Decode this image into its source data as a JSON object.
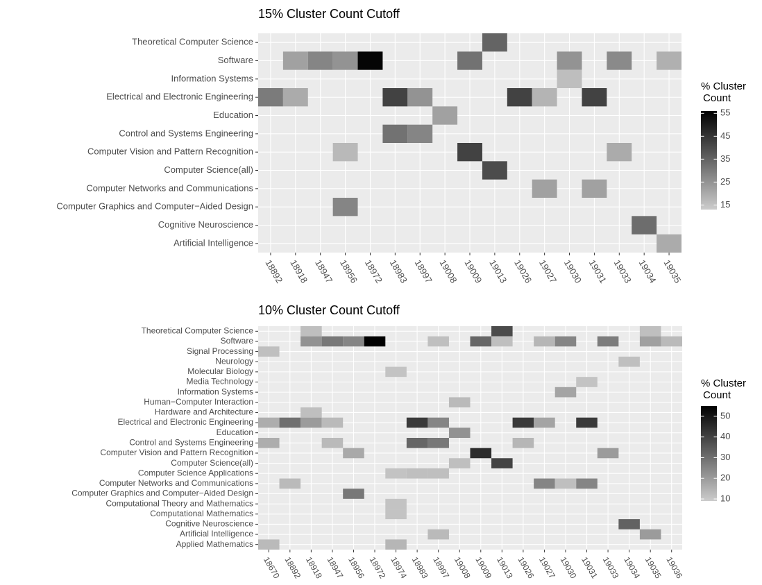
{
  "chart_data": [
    {
      "type": "heatmap",
      "title": "15% Cluster Count Cutoff",
      "x": [
        "18892",
        "18918",
        "18947",
        "18956",
        "18972",
        "18983",
        "18997",
        "19008",
        "19009",
        "19013",
        "19026",
        "19027",
        "19030",
        "19031",
        "19033",
        "19034",
        "19035"
      ],
      "y": [
        "Theoretical Computer Science",
        "Software",
        "Information Systems",
        "Electrical and Electronic Engineering",
        "Education",
        "Control and Systems Engineering",
        "Computer Vision and Pattern Recognition",
        "Computer Science(all)",
        "Computer Networks and Communications",
        "Computer Graphics and Computer−Aided Design",
        "Cognitive Neuroscience",
        "Artificial Intelligence"
      ],
      "values": [
        [
          null,
          null,
          null,
          null,
          null,
          null,
          null,
          null,
          null,
          35,
          null,
          null,
          null,
          null,
          null,
          null,
          null
        ],
        [
          null,
          22,
          28,
          25,
          55,
          null,
          null,
          null,
          32,
          null,
          null,
          null,
          25,
          null,
          27,
          null,
          19
        ],
        [
          null,
          null,
          null,
          null,
          null,
          null,
          null,
          null,
          null,
          null,
          null,
          null,
          16,
          null,
          null,
          null,
          null
        ],
        [
          30,
          20,
          null,
          null,
          null,
          42,
          25,
          null,
          null,
          null,
          42,
          18,
          null,
          42,
          null,
          null,
          null
        ],
        [
          null,
          null,
          null,
          null,
          null,
          null,
          null,
          22,
          null,
          null,
          null,
          null,
          null,
          null,
          null,
          null,
          null
        ],
        [
          null,
          null,
          null,
          null,
          null,
          32,
          28,
          null,
          null,
          null,
          null,
          null,
          null,
          null,
          null,
          null,
          null
        ],
        [
          null,
          null,
          null,
          17,
          null,
          null,
          null,
          null,
          42,
          null,
          null,
          null,
          null,
          null,
          20,
          null,
          null
        ],
        [
          null,
          null,
          null,
          null,
          null,
          null,
          null,
          null,
          null,
          40,
          null,
          null,
          null,
          null,
          null,
          null,
          null
        ],
        [
          null,
          null,
          null,
          null,
          null,
          null,
          null,
          null,
          null,
          null,
          null,
          22,
          null,
          22,
          null,
          null,
          null
        ],
        [
          null,
          null,
          null,
          28,
          null,
          null,
          null,
          null,
          null,
          null,
          null,
          null,
          null,
          null,
          null,
          null,
          null
        ],
        [
          null,
          null,
          null,
          null,
          null,
          null,
          null,
          null,
          null,
          null,
          null,
          null,
          null,
          null,
          null,
          33,
          null
        ],
        [
          null,
          null,
          null,
          null,
          null,
          null,
          null,
          null,
          null,
          null,
          null,
          null,
          null,
          null,
          null,
          null,
          20
        ]
      ],
      "legend_title": [
        "% Cluster",
        "Count"
      ],
      "clim": [
        13,
        56
      ],
      "cticks": [
        15,
        25,
        35,
        45,
        55
      ],
      "low_color": "#cccccc",
      "high_color": "#000000",
      "grid": true
    },
    {
      "type": "heatmap",
      "title": "10% Cluster Count Cutoff",
      "x": [
        "18670",
        "18892",
        "18918",
        "18947",
        "18956",
        "18972",
        "18974",
        "18983",
        "18997",
        "19008",
        "19009",
        "19013",
        "19026",
        "19027",
        "19030",
        "19031",
        "19033",
        "19034",
        "19035",
        "19036"
      ],
      "y": [
        "Theoretical Computer Science",
        "Software",
        "Signal Processing",
        "Neurology",
        "Molecular Biology",
        "Media Technology",
        "Information Systems",
        "Human−Computer Interaction",
        "Hardware and Architecture",
        "Electrical and Electronic Engineering",
        "Education",
        "Control and Systems Engineering",
        "Computer Vision and Pattern Recognition",
        "Computer Science(all)",
        "Computer Science Applications",
        "Computer Networks and Communications",
        "Computer Graphics and Computer−Aided Design",
        "Computational Theory and Mathematics",
        "Computational Mathematics",
        "Cognitive Neuroscience",
        "Artificial Intelligence",
        "Applied Mathematics"
      ],
      "values": [
        [
          null,
          null,
          12,
          null,
          null,
          null,
          null,
          null,
          null,
          null,
          null,
          38,
          null,
          null,
          null,
          null,
          null,
          null,
          12,
          null
        ],
        [
          null,
          null,
          22,
          28,
          25,
          55,
          null,
          null,
          12,
          null,
          32,
          12,
          null,
          14,
          25,
          null,
          27,
          null,
          19,
          13
        ],
        [
          12,
          null,
          null,
          null,
          null,
          null,
          null,
          null,
          null,
          null,
          null,
          null,
          null,
          null,
          null,
          null,
          null,
          null,
          null,
          null
        ],
        [
          null,
          null,
          null,
          null,
          null,
          null,
          null,
          null,
          null,
          null,
          null,
          null,
          null,
          null,
          null,
          null,
          null,
          12,
          null,
          null
        ],
        [
          null,
          null,
          null,
          null,
          null,
          null,
          11,
          null,
          null,
          null,
          null,
          null,
          null,
          null,
          null,
          null,
          null,
          null,
          null,
          null
        ],
        [
          null,
          null,
          null,
          null,
          null,
          null,
          null,
          null,
          null,
          null,
          null,
          null,
          null,
          null,
          null,
          11,
          null,
          null,
          null,
          null
        ],
        [
          null,
          null,
          null,
          null,
          null,
          null,
          null,
          null,
          null,
          null,
          null,
          null,
          null,
          null,
          18,
          null,
          null,
          null,
          null,
          null
        ],
        [
          null,
          null,
          null,
          null,
          null,
          null,
          null,
          null,
          null,
          13,
          null,
          null,
          null,
          null,
          null,
          null,
          null,
          null,
          null,
          null
        ],
        [
          null,
          null,
          12,
          null,
          null,
          null,
          null,
          null,
          null,
          null,
          null,
          null,
          null,
          null,
          null,
          null,
          null,
          null,
          null,
          null
        ],
        [
          16,
          30,
          20,
          13,
          null,
          null,
          null,
          42,
          25,
          null,
          null,
          null,
          42,
          18,
          null,
          42,
          null,
          null,
          null,
          null
        ],
        [
          null,
          null,
          null,
          null,
          null,
          null,
          null,
          null,
          null,
          22,
          null,
          null,
          null,
          null,
          null,
          null,
          null,
          null,
          null,
          null
        ],
        [
          16,
          null,
          null,
          13,
          null,
          null,
          null,
          32,
          28,
          null,
          null,
          null,
          14,
          null,
          null,
          null,
          null,
          null,
          null,
          null
        ],
        [
          null,
          null,
          null,
          null,
          17,
          null,
          null,
          null,
          null,
          null,
          45,
          null,
          null,
          null,
          null,
          null,
          20,
          null,
          null,
          null
        ],
        [
          null,
          null,
          null,
          null,
          null,
          null,
          null,
          null,
          null,
          12,
          null,
          40,
          null,
          null,
          null,
          null,
          null,
          null,
          null,
          null
        ],
        [
          null,
          null,
          null,
          null,
          null,
          null,
          11,
          12,
          12,
          null,
          null,
          null,
          null,
          null,
          null,
          null,
          null,
          null,
          null,
          null
        ],
        [
          null,
          13,
          null,
          null,
          null,
          null,
          null,
          null,
          null,
          null,
          null,
          null,
          null,
          25,
          12,
          25,
          null,
          null,
          null,
          null
        ],
        [
          null,
          null,
          null,
          null,
          28,
          null,
          null,
          null,
          null,
          null,
          null,
          null,
          null,
          null,
          null,
          null,
          null,
          null,
          null,
          null
        ],
        [
          null,
          null,
          null,
          null,
          null,
          null,
          11,
          null,
          null,
          null,
          null,
          null,
          null,
          null,
          null,
          null,
          null,
          null,
          null,
          null
        ],
        [
          null,
          null,
          null,
          null,
          null,
          null,
          11,
          null,
          null,
          null,
          null,
          null,
          null,
          null,
          null,
          null,
          null,
          null,
          null,
          null
        ],
        [
          null,
          null,
          null,
          null,
          null,
          null,
          null,
          null,
          null,
          null,
          null,
          null,
          null,
          null,
          null,
          null,
          null,
          33,
          null,
          null
        ],
        [
          null,
          null,
          null,
          null,
          null,
          null,
          null,
          null,
          13,
          null,
          null,
          null,
          null,
          null,
          null,
          null,
          null,
          null,
          20,
          null
        ],
        [
          13,
          null,
          null,
          null,
          null,
          null,
          14,
          null,
          null,
          null,
          null,
          null,
          null,
          null,
          null,
          null,
          null,
          null,
          null,
          null
        ]
      ],
      "legend_title": [
        "% Cluster",
        "Count"
      ],
      "clim": [
        9,
        55
      ],
      "cticks": [
        10,
        20,
        30,
        40,
        50
      ],
      "low_color": "#cccccc",
      "high_color": "#000000",
      "grid": true
    }
  ]
}
